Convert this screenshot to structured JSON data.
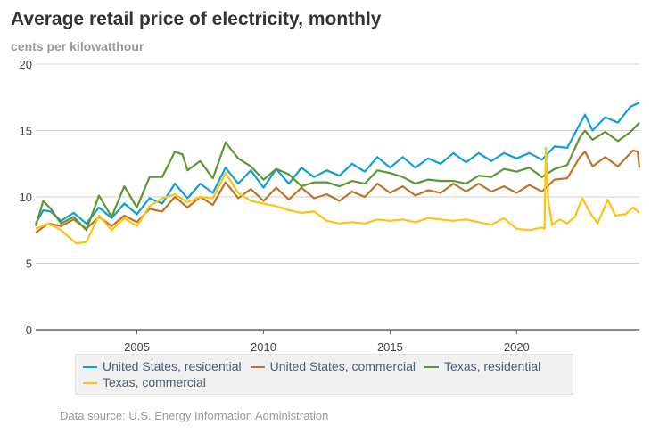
{
  "chart_data": {
    "type": "line",
    "title": "Average retail price of electricity, monthly",
    "ylabel": "cents per kilowatthour",
    "xlim": [
      2001.0,
      2024.85
    ],
    "ylim": [
      0,
      20
    ],
    "yticks": [
      0,
      5,
      10,
      15,
      20
    ],
    "xticks": [
      2005,
      2010,
      2015,
      2020
    ],
    "grid": "horizontal",
    "legend": "bottom",
    "source": "Data source: U.S. Energy Information Administration",
    "series": [
      {
        "name": "United States, residential",
        "color": "#0f9ed5",
        "points": [
          [
            2001,
            8.0
          ],
          [
            2001.3,
            9.0
          ],
          [
            2001.6,
            8.9
          ],
          [
            2002,
            8.2
          ],
          [
            2002.5,
            8.8
          ],
          [
            2003,
            8.0
          ],
          [
            2003.5,
            9.2
          ],
          [
            2004,
            8.4
          ],
          [
            2004.5,
            9.5
          ],
          [
            2005,
            8.7
          ],
          [
            2005.5,
            9.9
          ],
          [
            2006,
            9.5
          ],
          [
            2006.5,
            11.0
          ],
          [
            2007,
            9.9
          ],
          [
            2007.5,
            11.0
          ],
          [
            2008,
            10.3
          ],
          [
            2008.5,
            12.2
          ],
          [
            2009,
            11.0
          ],
          [
            2009.5,
            12.0
          ],
          [
            2010,
            10.7
          ],
          [
            2010.5,
            12.1
          ],
          [
            2011,
            11.0
          ],
          [
            2011.5,
            12.2
          ],
          [
            2012,
            11.5
          ],
          [
            2012.5,
            12.0
          ],
          [
            2013,
            11.6
          ],
          [
            2013.5,
            12.5
          ],
          [
            2014,
            11.9
          ],
          [
            2014.5,
            13.0
          ],
          [
            2015,
            12.2
          ],
          [
            2015.5,
            13.0
          ],
          [
            2016,
            12.2
          ],
          [
            2016.5,
            12.9
          ],
          [
            2017,
            12.5
          ],
          [
            2017.5,
            13.3
          ],
          [
            2018,
            12.6
          ],
          [
            2018.5,
            13.3
          ],
          [
            2019,
            12.7
          ],
          [
            2019.5,
            13.3
          ],
          [
            2020,
            12.9
          ],
          [
            2020.5,
            13.3
          ],
          [
            2021,
            12.8
          ],
          [
            2021.5,
            13.8
          ],
          [
            2022,
            13.7
          ],
          [
            2022.5,
            15.5
          ],
          [
            2022.7,
            16.2
          ],
          [
            2023,
            15.0
          ],
          [
            2023.5,
            16.0
          ],
          [
            2024,
            15.6
          ],
          [
            2024.5,
            16.8
          ],
          [
            2024.85,
            17.1
          ]
        ]
      },
      {
        "name": "United States, commercial",
        "color": "#bd732a",
        "points": [
          [
            2001,
            7.3
          ],
          [
            2001.5,
            8.0
          ],
          [
            2002,
            7.8
          ],
          [
            2002.5,
            8.3
          ],
          [
            2003,
            7.6
          ],
          [
            2003.5,
            8.5
          ],
          [
            2004,
            7.8
          ],
          [
            2004.5,
            8.6
          ],
          [
            2005,
            8.1
          ],
          [
            2005.5,
            9.1
          ],
          [
            2006,
            8.9
          ],
          [
            2006.5,
            10.0
          ],
          [
            2007,
            9.2
          ],
          [
            2007.5,
            10.0
          ],
          [
            2008,
            9.4
          ],
          [
            2008.5,
            11.1
          ],
          [
            2009,
            9.9
          ],
          [
            2009.5,
            10.6
          ],
          [
            2010,
            9.7
          ],
          [
            2010.5,
            10.7
          ],
          [
            2011,
            9.8
          ],
          [
            2011.5,
            10.7
          ],
          [
            2012,
            9.9
          ],
          [
            2012.5,
            10.2
          ],
          [
            2013,
            9.7
          ],
          [
            2013.5,
            10.4
          ],
          [
            2014,
            10.0
          ],
          [
            2014.5,
            11.0
          ],
          [
            2015,
            10.3
          ],
          [
            2015.5,
            10.8
          ],
          [
            2016,
            10.1
          ],
          [
            2016.5,
            10.5
          ],
          [
            2017,
            10.3
          ],
          [
            2017.5,
            11.0
          ],
          [
            2018,
            10.4
          ],
          [
            2018.5,
            11.0
          ],
          [
            2019,
            10.4
          ],
          [
            2019.5,
            10.8
          ],
          [
            2020,
            10.3
          ],
          [
            2020.5,
            10.9
          ],
          [
            2021,
            10.4
          ],
          [
            2021.5,
            11.3
          ],
          [
            2022,
            11.4
          ],
          [
            2022.5,
            13.0
          ],
          [
            2022.7,
            13.4
          ],
          [
            2023,
            12.3
          ],
          [
            2023.5,
            13.0
          ],
          [
            2024,
            12.3
          ],
          [
            2024.6,
            13.5
          ],
          [
            2024.78,
            13.4
          ],
          [
            2024.85,
            12.2
          ]
        ]
      },
      {
        "name": "Texas, residential",
        "color": "#5d9732",
        "points": [
          [
            2001,
            7.8
          ],
          [
            2001.3,
            9.7
          ],
          [
            2001.6,
            9.1
          ],
          [
            2002,
            8.0
          ],
          [
            2002.5,
            8.5
          ],
          [
            2003,
            7.5
          ],
          [
            2003.5,
            10.1
          ],
          [
            2004,
            8.5
          ],
          [
            2004.5,
            10.8
          ],
          [
            2005,
            9.2
          ],
          [
            2005.5,
            11.5
          ],
          [
            2006,
            11.5
          ],
          [
            2006.5,
            13.4
          ],
          [
            2006.8,
            13.2
          ],
          [
            2007,
            12.0
          ],
          [
            2007.5,
            12.7
          ],
          [
            2008,
            11.4
          ],
          [
            2008.5,
            14.1
          ],
          [
            2009,
            12.9
          ],
          [
            2009.5,
            12.3
          ],
          [
            2010,
            11.3
          ],
          [
            2010.5,
            12.1
          ],
          [
            2011,
            11.7
          ],
          [
            2011.5,
            10.8
          ],
          [
            2012,
            11.1
          ],
          [
            2012.5,
            11.1
          ],
          [
            2013,
            10.8
          ],
          [
            2013.5,
            11.2
          ],
          [
            2014,
            11.0
          ],
          [
            2014.5,
            12.0
          ],
          [
            2015,
            11.8
          ],
          [
            2015.5,
            11.5
          ],
          [
            2016,
            11.0
          ],
          [
            2016.5,
            11.3
          ],
          [
            2017,
            11.2
          ],
          [
            2017.5,
            11.2
          ],
          [
            2018,
            11.0
          ],
          [
            2018.5,
            11.6
          ],
          [
            2019,
            11.5
          ],
          [
            2019.5,
            12.1
          ],
          [
            2020,
            11.9
          ],
          [
            2020.5,
            12.2
          ],
          [
            2021,
            11.5
          ],
          [
            2021.5,
            12.1
          ],
          [
            2022,
            12.4
          ],
          [
            2022.5,
            14.5
          ],
          [
            2022.7,
            15.0
          ],
          [
            2023,
            14.3
          ],
          [
            2023.5,
            14.9
          ],
          [
            2024,
            14.2
          ],
          [
            2024.5,
            14.9
          ],
          [
            2024.85,
            15.6
          ]
        ]
      },
      {
        "name": "Texas, commercial",
        "color": "#ffc20e",
        "points": [
          [
            2001,
            7.6
          ],
          [
            2001.5,
            8.0
          ],
          [
            2002,
            7.5
          ],
          [
            2002.3,
            7.0
          ],
          [
            2002.6,
            6.5
          ],
          [
            2003,
            6.6
          ],
          [
            2003.5,
            8.6
          ],
          [
            2004,
            7.5
          ],
          [
            2004.5,
            8.4
          ],
          [
            2005,
            7.8
          ],
          [
            2005.5,
            9.3
          ],
          [
            2006,
            9.9
          ],
          [
            2006.5,
            10.2
          ],
          [
            2007,
            9.6
          ],
          [
            2007.5,
            10.0
          ],
          [
            2008,
            9.9
          ],
          [
            2008.5,
            11.8
          ],
          [
            2009,
            10.3
          ],
          [
            2009.5,
            9.7
          ],
          [
            2010,
            9.5
          ],
          [
            2010.5,
            9.3
          ],
          [
            2011,
            9.0
          ],
          [
            2011.5,
            8.8
          ],
          [
            2012,
            8.9
          ],
          [
            2012.5,
            8.2
          ],
          [
            2013,
            8.0
          ],
          [
            2013.5,
            8.1
          ],
          [
            2014,
            8.0
          ],
          [
            2014.5,
            8.3
          ],
          [
            2015,
            8.2
          ],
          [
            2015.5,
            8.3
          ],
          [
            2016,
            8.1
          ],
          [
            2016.5,
            8.4
          ],
          [
            2017,
            8.3
          ],
          [
            2017.5,
            8.2
          ],
          [
            2018,
            8.3
          ],
          [
            2018.5,
            8.1
          ],
          [
            2019,
            7.9
          ],
          [
            2019.5,
            8.4
          ],
          [
            2020,
            7.6
          ],
          [
            2020.5,
            7.5
          ],
          [
            2021,
            7.7
          ],
          [
            2021.1,
            7.6
          ],
          [
            2021.15,
            13.7
          ],
          [
            2021.25,
            9.7
          ],
          [
            2021.4,
            7.9
          ],
          [
            2021.7,
            8.3
          ],
          [
            2022,
            8.0
          ],
          [
            2022.3,
            8.5
          ],
          [
            2022.6,
            9.9
          ],
          [
            2022.9,
            8.8
          ],
          [
            2023.2,
            8.0
          ],
          [
            2023.6,
            9.8
          ],
          [
            2023.9,
            8.6
          ],
          [
            2024.3,
            8.7
          ],
          [
            2024.6,
            9.2
          ],
          [
            2024.85,
            8.8
          ]
        ]
      }
    ]
  }
}
